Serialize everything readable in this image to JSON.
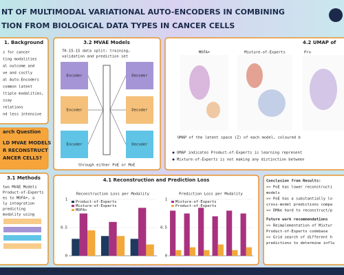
{
  "header": {
    "title_lines": [
      "NT OF MULTIMODAL VARIATIONAL AUTO-ENCODERS IN COMBINING",
      "TION FROM BIOLOGICAL DATA TYPES IN CANCER CELLS"
    ]
  },
  "background": {
    "heading": "1. Background",
    "lines": [
      "s for cancer",
      "ting modalities",
      "al outcome and",
      "ve and costly",
      "al Auto-Encoders",
      "common latent",
      "ltiple modalities,",
      "ssay",
      "relations",
      "nd less intensive"
    ]
  },
  "question": {
    "heading": "arch Question",
    "lines": [
      "LD MVAE MODELS",
      "R RECONSTRUCT",
      "ANCER CELLS?"
    ]
  },
  "methods": {
    "heading": "3.1 Methods",
    "lines": [
      "two MVAE Models",
      "Product-of-Experts",
      "es to MOFA+, a",
      "ly integration",
      "predicting",
      "modality using"
    ]
  },
  "mvae": {
    "heading": "3.2 MVAE Models",
    "lines": [
      "70-15-15 data split: training,",
      "validation and prediction set"
    ],
    "encoder": "Encoder",
    "decoder": "Decoder",
    "footnote": "through either PoE or MoE"
  },
  "umap": {
    "heading": "4.2 UMAP of",
    "plot_titles": [
      "MOFA+",
      "Mixture-of-Experts",
      "Pro"
    ],
    "caption": "UMAP of the latent space (Z) of each model, coloured b",
    "bullets": [
      "UMAP indicates Product-of-Experts is learning represent",
      "Mixture-of-Experts is not making any distinction between"
    ]
  },
  "loss": {
    "heading": "4.1 Reconstruction and Prediction Loss",
    "charts": [
      {
        "type": "bar",
        "title": "Reconstruction Loss per Modality",
        "categories": [
          null,
          null,
          null
        ],
        "series": [
          {
            "name": "Product-of-Experts",
            "color": "#1f3a5f",
            "values": [
              0.3,
              0.35,
              0.3
            ]
          },
          {
            "name": "Mixture-of-Experts",
            "color": "#a8327f",
            "values": [
              0.75,
              0.6,
              0.85
            ]
          },
          {
            "name": "MOFA+",
            "color": "#f2a83a",
            "values": [
              0.45,
              0.35,
              0.2
            ]
          }
        ],
        "ylim": [
          0,
          1
        ],
        "yticks": [
          0,
          0.5,
          1
        ]
      },
      {
        "type": "bar",
        "title": "Prediction Loss per Modality",
        "categories": [
          null,
          null,
          null,
          null,
          null,
          null
        ],
        "series": [
          {
            "name": "Mixture-of-Experts",
            "color": "#a8327f",
            "values": [
              0.8,
              0.75,
              0.85,
              0.7,
              0.8,
              0.75
            ]
          },
          {
            "name": "Product-of-Experts",
            "color": "#f2a83a",
            "values": [
              0.1,
              0.15,
              0.1,
              0.2,
              0.1,
              0.15
            ]
          }
        ],
        "ylim": [
          0,
          1
        ],
        "yticks": [
          0,
          0.5,
          1
        ]
      }
    ]
  },
  "conclusions": {
    "heading": "Conclusion from Results:",
    "items": [
      ">> PoE has lower reconstructi",
      "models",
      ">> PoE has a substantially lo",
      "cross-model predictions compa",
      ">> DMAe hard to reconstruct/p"
    ],
    "future_heading": "Future work recommendations",
    ">>": null,
    "future_items": [
      ">> Reimplementation of Mixtur",
      "Product-of-Experts codebase",
      ">> Grid search of different h",
      "predictions to determine influ"
    ]
  },
  "footer": {
    "text": "| Modelling cancer with deep generative neural networks | 05 July 2023 | S.R.Prashantam@tudelft.nl"
  }
}
